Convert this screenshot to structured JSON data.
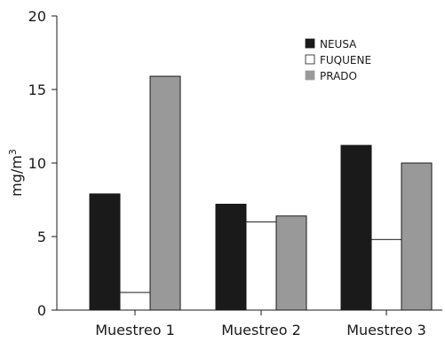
{
  "chart_data": {
    "type": "bar",
    "categories": [
      "Muestreo 1",
      "Muestreo 2",
      "Muestreo 3"
    ],
    "series": [
      {
        "name": "NEUSA",
        "values": [
          7.9,
          7.2,
          11.2
        ],
        "color": "#1a1a1a"
      },
      {
        "name": "FUQUENE",
        "values": [
          1.2,
          6.0,
          4.8
        ],
        "color": "#ffffff"
      },
      {
        "name": "PRADO",
        "values": [
          15.9,
          6.4,
          10.0
        ],
        "color": "#999999"
      }
    ],
    "title": "",
    "xlabel": "",
    "ylabel_base": "mg/m",
    "ylabel_sup": "3",
    "ylim": [
      0,
      20
    ],
    "yticks": [
      0,
      5,
      10,
      15,
      20
    ],
    "grid": false,
    "legend_position": "top-right"
  }
}
